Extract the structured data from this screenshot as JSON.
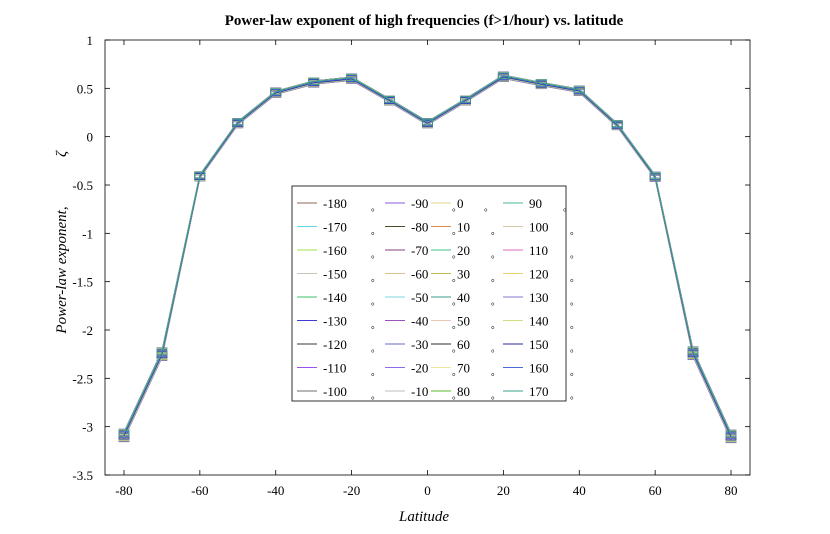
{
  "chart_data": {
    "type": "line",
    "title": "Power-law exponent of high frequencies (f>1/hour) vs. latitude",
    "xlabel": "Latitude",
    "ylabel_text": "Power-law exponent,",
    "ylabel_symbol": "ζ",
    "xlim": [
      -85,
      85
    ],
    "ylim": [
      -3.5,
      1
    ],
    "xticks": [
      -80,
      -60,
      -40,
      -20,
      0,
      20,
      40,
      60,
      80
    ],
    "yticks": [
      -3.5,
      -3,
      -2.5,
      -2,
      -1.5,
      -1,
      -0.5,
      0,
      0.5,
      1
    ],
    "x": [
      -80,
      -70,
      -60,
      -50,
      -40,
      -30,
      -20,
      -10,
      0,
      10,
      20,
      30,
      40,
      50,
      60,
      70,
      80
    ],
    "base_values": [
      -3.09,
      -2.25,
      -0.41,
      0.14,
      0.455,
      0.56,
      0.6,
      0.375,
      0.14,
      0.375,
      0.62,
      0.545,
      0.475,
      0.12,
      -0.415,
      -2.24,
      -3.1
    ],
    "degree_symbol": "°",
    "series": [
      {
        "name": "-180",
        "color": "#8c6a5a"
      },
      {
        "name": "-170",
        "color": "#5fd7e6"
      },
      {
        "name": "-160",
        "color": "#a6e04b"
      },
      {
        "name": "-150",
        "color": "#c9c4b9"
      },
      {
        "name": "-140",
        "color": "#42c26b"
      },
      {
        "name": "-130",
        "color": "#3d3ad1"
      },
      {
        "name": "-120",
        "color": "#3a3a3a"
      },
      {
        "name": "-110",
        "color": "#9a52e8"
      },
      {
        "name": "-100",
        "color": "#6e6e6e"
      },
      {
        "name": "-90",
        "color": "#8a5ae0"
      },
      {
        "name": "-80",
        "color": "#4a4a2a"
      },
      {
        "name": "-70",
        "color": "#8a3f7a"
      },
      {
        "name": "-60",
        "color": "#d9c190"
      },
      {
        "name": "-50",
        "color": "#7fd4e0"
      },
      {
        "name": "-40",
        "color": "#a04fc0"
      },
      {
        "name": "-30",
        "color": "#6a6acb"
      },
      {
        "name": "-20",
        "color": "#8e6ee8"
      },
      {
        "name": "-10",
        "color": "#bcbcbc"
      },
      {
        "name": "0",
        "color": "#e0d68a"
      },
      {
        "name": "10",
        "color": "#e08a4a"
      },
      {
        "name": "20",
        "color": "#3dc48a"
      },
      {
        "name": "30",
        "color": "#c2b84a"
      },
      {
        "name": "40",
        "color": "#3a9a8a"
      },
      {
        "name": "50",
        "color": "#e8c8b4"
      },
      {
        "name": "60",
        "color": "#2e2e2e"
      },
      {
        "name": "70",
        "color": "#efe6a0"
      },
      {
        "name": "80",
        "color": "#5ab82a"
      },
      {
        "name": "90",
        "color": "#4ab89a"
      },
      {
        "name": "100",
        "color": "#d8c8a8"
      },
      {
        "name": "110",
        "color": "#e06ac0"
      },
      {
        "name": "120",
        "color": "#f0d070"
      },
      {
        "name": "130",
        "color": "#8a7ad0"
      },
      {
        "name": "140",
        "color": "#c8e080"
      },
      {
        "name": "150",
        "color": "#2a2aa0"
      },
      {
        "name": "160",
        "color": "#4a6ad8"
      },
      {
        "name": "170",
        "color": "#3aa08a"
      }
    ]
  }
}
